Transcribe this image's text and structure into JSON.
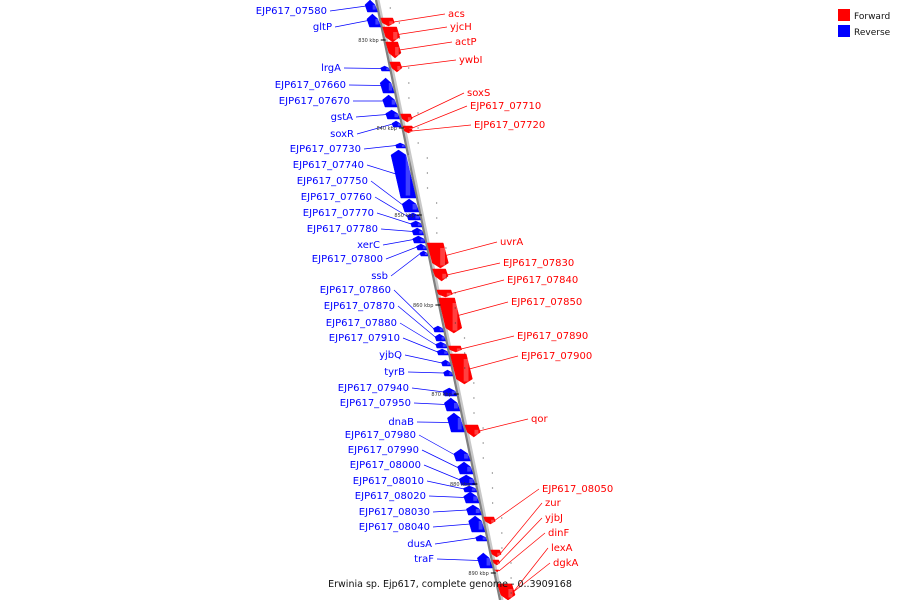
{
  "title": "Erwinia sp. Ejp617, complete genome - 0..3909168",
  "colors": {
    "forward": "#ff0000",
    "reverse": "#0000ff",
    "backbone": "#808080"
  },
  "legend": [
    {
      "key": "forward",
      "label": "Forward",
      "color": "#ff0000"
    },
    {
      "key": "reverse",
      "label": "Reverse",
      "color": "#0000ff"
    }
  ],
  "ticks": [
    "830 kbp",
    "840 kbp",
    "850 kbp",
    "860 kbp",
    "870 kbp",
    "880 kbp",
    "890 kbp"
  ],
  "genes": {
    "reverse": [
      "EJP617_07580",
      "gltP",
      "lrgA",
      "EJP617_07660",
      "EJP617_07670",
      "gstA",
      "soxR",
      "EJP617_07730",
      "EJP617_07740",
      "EJP617_07750",
      "EJP617_07760",
      "EJP617_07770",
      "EJP617_07780",
      "xerC",
      "EJP617_07800",
      "ssb",
      "EJP617_07860",
      "EJP617_07870",
      "EJP617_07880",
      "EJP617_07910",
      "yjbQ",
      "tyrB",
      "EJP617_07940",
      "EJP617_07950",
      "dnaB",
      "EJP617_07980",
      "EJP617_07990",
      "EJP617_08000",
      "EJP617_08010",
      "EJP617_08020",
      "EJP617_08030",
      "EJP617_08040",
      "dusA",
      "traF"
    ],
    "forward": [
      "acs",
      "yjcH",
      "actP",
      "ywbI",
      "soxS",
      "EJP617_07710",
      "EJP617_07720",
      "uvrA",
      "EJP617_07830",
      "EJP617_07840",
      "EJP617_07850",
      "EJP617_07890",
      "EJP617_07900",
      "qor",
      "EJP617_08050",
      "zur",
      "yjbJ",
      "dinF",
      "lexA",
      "dgkA"
    ]
  }
}
